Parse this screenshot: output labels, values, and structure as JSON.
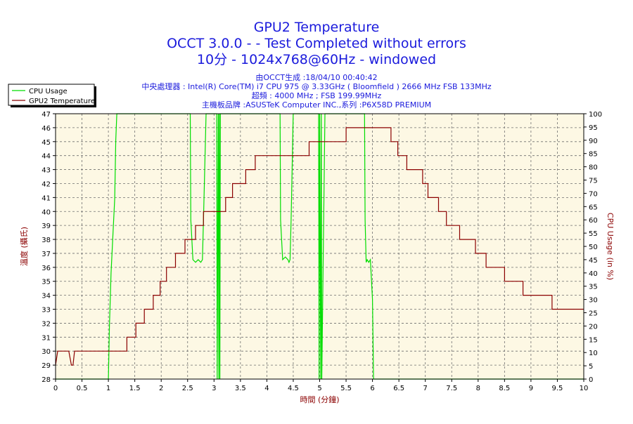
{
  "header": {
    "title_lines": [
      "GPU2 Temperature",
      "OCCT 3.0.0 -  - Test Completed without errors",
      "10分 - 1024x768@60Hz - windowed"
    ],
    "info_lines": [
      "由OCCT生成 :18/04/10 00:40:42",
      "中央處理器 : Intel(R) Core(TM) i7 CPU 975 @ 3.33GHz ( Bloomfield ) 2666 MHz FSB 133MHz",
      "超頻 : 4000 MHz ; FSB 199.99MHz",
      "主機板品牌 :ASUSTeK Computer INC.,系列 :P6X58D PREMIUM"
    ]
  },
  "colors": {
    "plot_background": "#fdf8e4",
    "gpu_line": "#8b0000",
    "cpu_line": "#00dd00",
    "grid": "#6e6e6e",
    "title": "#1a1adc",
    "axis_label": "#8b0000"
  },
  "chart_data": {
    "type": "line",
    "title": "GPU2 Temperature",
    "xlabel": "時間 (分鐘)",
    "ylabel": "溫度 (攝氏)",
    "y2label": "CPU Usage (in %)",
    "xlim": [
      0,
      10
    ],
    "ylim": [
      28,
      47
    ],
    "y2lim": [
      0,
      100
    ],
    "x_ticks": [
      "0",
      "0.5",
      "1",
      "1.5",
      "2",
      "2.5",
      "3",
      "3.5",
      "4",
      "4.5",
      "5",
      "5.5",
      "6",
      "6.5",
      "7",
      "7.5",
      "8",
      "8.5",
      "9",
      "9.5",
      "10"
    ],
    "y_ticks": [
      "28",
      "29",
      "30",
      "31",
      "32",
      "33",
      "34",
      "35",
      "36",
      "37",
      "38",
      "39",
      "40",
      "41",
      "42",
      "43",
      "44",
      "45",
      "46",
      "47"
    ],
    "y2_ticks": [
      "0",
      "5",
      "10",
      "15",
      "20",
      "25",
      "30",
      "35",
      "40",
      "45",
      "50",
      "55",
      "60",
      "65",
      "70",
      "75",
      "80",
      "85",
      "90",
      "95",
      "100"
    ],
    "grid": true,
    "legend_position": "top-left",
    "series": [
      {
        "name": "CPU Usage",
        "axis": "right",
        "x": [
          0,
          1.0,
          1.02,
          1.05,
          1.1,
          1.12,
          1.14,
          1.16,
          1.2,
          1.3,
          2.55,
          2.56,
          2.6,
          2.65,
          2.7,
          2.75,
          2.78,
          2.8,
          2.85,
          2.9,
          3.05,
          3.06,
          3.08,
          3.09,
          3.1,
          3.11,
          3.12,
          3.2,
          4.25,
          4.26,
          4.3,
          4.35,
          4.4,
          4.42,
          4.44,
          4.46,
          4.5,
          4.9,
          4.98,
          4.99,
          5.0,
          5.02,
          5.03,
          5.04,
          5.1,
          5.85,
          5.86,
          5.88,
          5.9,
          5.93,
          5.96,
          6.0,
          6.02,
          6.03,
          10
        ],
        "values": [
          0,
          0,
          20,
          40,
          60,
          68,
          90,
          100,
          100,
          100,
          100,
          60,
          45,
          44,
          45,
          44,
          45,
          60,
          100,
          100,
          100,
          0,
          100,
          0,
          100,
          0,
          100,
          100,
          100,
          60,
          45,
          46,
          45,
          44,
          45,
          60,
          100,
          100,
          100,
          0,
          100,
          0,
          100,
          0,
          100,
          100,
          60,
          44,
          45,
          44,
          45,
          30,
          0,
          0,
          0
        ]
      },
      {
        "name": "GPU2 Temperature",
        "axis": "left",
        "x": [
          0,
          0.04,
          0.06,
          0.25,
          0.3,
          0.33,
          0.36,
          0.4,
          1.35,
          1.35,
          1.52,
          1.52,
          1.68,
          1.68,
          1.85,
          1.85,
          1.98,
          1.98,
          2.1,
          2.1,
          2.27,
          2.27,
          2.45,
          2.45,
          2.65,
          2.65,
          2.8,
          2.8,
          2.93,
          2.93,
          3.1,
          3.1,
          3.22,
          3.22,
          3.35,
          3.35,
          3.6,
          3.6,
          3.78,
          3.78,
          3.95,
          3.95,
          4.35,
          4.35,
          4.8,
          4.8,
          5.5,
          5.5,
          6.0,
          6.0,
          6.35,
          6.35,
          6.48,
          6.48,
          6.65,
          6.65,
          6.95,
          6.95,
          7.05,
          7.05,
          7.25,
          7.25,
          7.4,
          7.4,
          7.65,
          7.65,
          7.95,
          7.95,
          8.15,
          8.15,
          8.5,
          8.5,
          8.85,
          8.85,
          9.4,
          9.4,
          10
        ],
        "values": [
          29,
          30,
          30,
          30,
          29,
          29,
          30,
          30,
          30,
          31,
          31,
          32,
          32,
          33,
          33,
          34,
          34,
          35,
          35,
          36,
          36,
          37,
          37,
          38,
          38,
          39,
          39,
          40,
          40,
          40,
          40,
          40,
          40,
          41,
          41,
          42,
          42,
          43,
          43,
          44,
          44,
          44,
          44,
          44,
          44,
          45,
          45,
          46,
          46,
          46,
          46,
          45,
          45,
          44,
          44,
          43,
          43,
          42,
          42,
          41,
          41,
          40,
          40,
          39,
          39,
          38,
          38,
          37,
          37,
          36,
          36,
          35,
          35,
          34,
          34,
          33,
          33
        ]
      }
    ]
  }
}
